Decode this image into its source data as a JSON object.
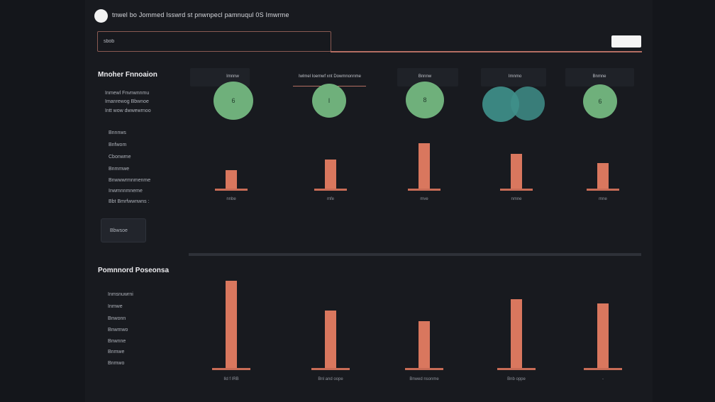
{
  "header": {
    "title": "tnwel bo Jommed Isswrd st pnwnpecl pamnuqul 0S Imwrme"
  },
  "search": {
    "value": "sbob"
  },
  "sidebar_top": {
    "heading": "Mnoher Fnnoaion",
    "items_a": [
      "Inmewl Fnvnwnnmu",
      "Imanrewog Bbwnoe",
      "Intt wow dwwewrnoo"
    ],
    "items_b": [
      "Bnnnws",
      "Bnfwom",
      "Cbonwme",
      "Bnmmwe",
      "Bnwwwrmnmenme",
      "Inwmnnmneme",
      "Bbt Bmrfwwnwns :"
    ],
    "box_label": "Bbwsoe"
  },
  "sidebar_bottom": {
    "heading": "Pomnnord Poseonsa",
    "items": [
      "Inmsnuwrni",
      "Inmwe",
      "Bnwonn",
      "Bnwmwo",
      "Bnwnne",
      "Bnmwe",
      "Bnmwo"
    ]
  },
  "columns": [
    {
      "header": "Imnnw",
      "circle": "6"
    },
    {
      "header": "Iwlmel Ioemwf xnt Dowmnonnme",
      "circle": "I"
    },
    {
      "header": "Bnnnw",
      "circle": "8"
    },
    {
      "header": "Imnmo",
      "circle": ""
    },
    {
      "header": "Bnmne",
      "circle": "6"
    }
  ],
  "chart_top": {
    "labels": [
      "nnbe",
      "mfe",
      "mve",
      "nmne",
      "mne"
    ],
    "baselines": [
      "",
      "",
      "",
      "",
      ""
    ]
  },
  "chart_bottom": {
    "labels_a": [
      "",
      "",
      "",
      "",
      ""
    ],
    "labels_b": [
      "Ild f IRB",
      "Bnl and oope",
      "Bnwed nsonme",
      "Bnb oppe",
      "-"
    ]
  },
  "chart_data": [
    {
      "type": "bar",
      "categories": [
        "1",
        "2",
        "3",
        "4",
        "5"
      ],
      "values": [
        25,
        40,
        62,
        48,
        35
      ],
      "ylim": [
        0,
        70
      ]
    },
    {
      "type": "bar",
      "categories": [
        "1",
        "2",
        "3",
        "4",
        "5"
      ],
      "values": [
        123,
        81,
        66,
        97,
        91
      ],
      "ylim": [
        0,
        130
      ]
    }
  ],
  "colors": {
    "bar": "#d9775e",
    "circle_green": "#6fb07b",
    "circle_teal": "#3f8f8a",
    "accent_line": "#b46e62"
  }
}
